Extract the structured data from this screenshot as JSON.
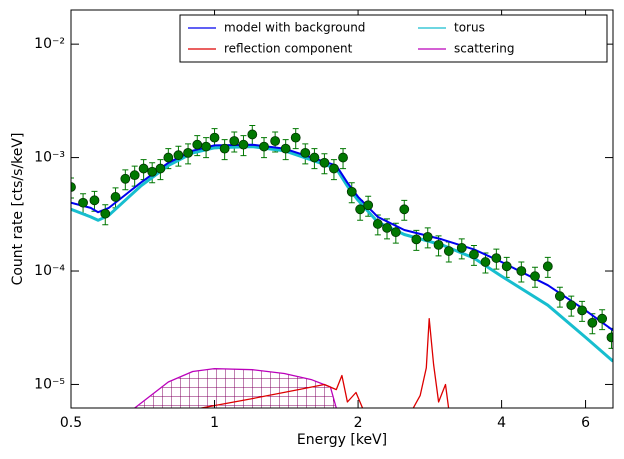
{
  "chart_data": {
    "type": "line",
    "xlabel": "Energy [keV]",
    "ylabel": "Count rate [cts/s/keV]",
    "xscale": "log",
    "yscale": "log",
    "xlim": [
      0.5,
      6.85
    ],
    "ylim": [
      6.2e-06,
      0.02
    ],
    "xticks": [
      0.5,
      1,
      2,
      4,
      6
    ],
    "yticks": [
      {
        "value": 1e-05,
        "label": "10⁻⁵"
      },
      {
        "value": 0.0001,
        "label": "10⁻⁴"
      },
      {
        "value": 0.001,
        "label": "10⁻³"
      },
      {
        "value": 0.01,
        "label": "10⁻²"
      }
    ],
    "legend": "upper right",
    "series": [
      {
        "name": "model with background",
        "color": "#0000ee",
        "width": 2,
        "x": [
          0.5,
          0.55,
          0.57,
          0.6,
          0.7,
          0.8,
          0.9,
          1.0,
          1.2,
          1.4,
          1.6,
          1.8,
          1.9,
          2.0,
          2.2,
          2.5,
          3,
          3.5,
          4,
          5,
          6,
          6.85
        ],
        "values": [
          0.0004,
          0.00036,
          0.00033,
          0.00036,
          0.0006,
          0.0009,
          0.00115,
          0.00128,
          0.0013,
          0.0012,
          0.001,
          0.00085,
          0.0006,
          0.00045,
          0.0003,
          0.00023,
          0.00019,
          0.000155,
          0.00012,
          7.5e-05,
          4.5e-05,
          3e-05
        ]
      },
      {
        "name": "torus",
        "color": "#17becf",
        "width": 3,
        "x": [
          0.5,
          0.55,
          0.57,
          0.6,
          0.7,
          0.8,
          0.9,
          1.0,
          1.2,
          1.4,
          1.6,
          1.8,
          1.9,
          2.0,
          2.2,
          2.5,
          3,
          3.5,
          4,
          5,
          6,
          6.85
        ],
        "values": [
          0.00035,
          0.0003,
          0.00028,
          0.00031,
          0.00056,
          0.00085,
          0.0011,
          0.00122,
          0.00125,
          0.00115,
          0.00095,
          0.0008,
          0.00056,
          0.00042,
          0.00027,
          0.00021,
          0.00017,
          0.00013,
          9e-05,
          5e-05,
          2.6e-05,
          1.6e-05
        ]
      },
      {
        "name": "reflection component",
        "color": "#dd0000",
        "width": 1.3,
        "x": [
          0.9,
          1.2,
          1.5,
          1.7,
          1.8,
          1.85,
          1.9,
          1.98,
          2.05,
          2.6,
          2.7,
          2.78,
          2.82,
          2.88,
          2.95,
          3.05,
          3.1
        ],
        "values": [
          6e-06,
          7.5e-06,
          9e-06,
          1e-05,
          9e-06,
          1.2e-05,
          7e-06,
          8.5e-06,
          6e-06,
          6e-06,
          8e-06,
          1.4e-05,
          3.8e-05,
          1.5e-05,
          7e-06,
          1e-05,
          6e-06
        ]
      },
      {
        "name": "scattering",
        "color": "#bb00bb",
        "width": 1.3,
        "hatch": true,
        "x": [
          0.68,
          0.8,
          0.9,
          1.0,
          1.2,
          1.4,
          1.6,
          1.75,
          1.8
        ],
        "values": [
          6.2e-06,
          1.05e-05,
          1.3e-05,
          1.38e-05,
          1.35e-05,
          1.25e-05,
          1.1e-05,
          9.5e-06,
          6.2e-06
        ]
      }
    ],
    "points": {
      "color": "#007700",
      "x": [
        0.5,
        0.53,
        0.56,
        0.59,
        0.62,
        0.65,
        0.68,
        0.71,
        0.74,
        0.77,
        0.8,
        0.84,
        0.88,
        0.92,
        0.96,
        1.0,
        1.05,
        1.1,
        1.15,
        1.2,
        1.27,
        1.34,
        1.41,
        1.48,
        1.55,
        1.62,
        1.7,
        1.78,
        1.86,
        1.94,
        2.02,
        2.1,
        2.2,
        2.3,
        2.4,
        2.5,
        2.65,
        2.8,
        2.95,
        3.1,
        3.3,
        3.5,
        3.7,
        3.9,
        4.1,
        4.4,
        4.7,
        5.0,
        5.3,
        5.6,
        5.9,
        6.2,
        6.5,
        6.8
      ],
      "values": [
        0.00055,
        0.0004,
        0.00042,
        0.00032,
        0.00045,
        0.00065,
        0.0007,
        0.0008,
        0.00075,
        0.0008,
        0.001,
        0.00105,
        0.0011,
        0.0013,
        0.00125,
        0.0015,
        0.0012,
        0.0014,
        0.0013,
        0.0016,
        0.00125,
        0.0014,
        0.0012,
        0.0015,
        0.0011,
        0.001,
        0.0009,
        0.0008,
        0.001,
        0.0005,
        0.00035,
        0.00038,
        0.00026,
        0.00024,
        0.00022,
        0.00035,
        0.00019,
        0.0002,
        0.00017,
        0.00015,
        0.00016,
        0.00014,
        0.00012,
        0.00013,
        0.00011,
        0.0001,
        9e-05,
        0.00011,
        6e-05,
        5e-05,
        4.5e-05,
        3.5e-05,
        3.8e-05,
        2.6e-05
      ],
      "errors": [
        0.00011,
        8e-05,
        8.4e-05,
        6.4e-05,
        9e-05,
        0.00013,
        0.00014,
        0.00016,
        0.00015,
        0.00016,
        0.0002,
        0.00021,
        0.00022,
        0.00026,
        0.00025,
        0.0003,
        0.00024,
        0.00028,
        0.00026,
        0.00032,
        0.00025,
        0.00028,
        0.00024,
        0.0003,
        0.00022,
        0.0002,
        0.00018,
        0.00016,
        0.0002,
        0.0001,
        7e-05,
        7.6e-05,
        5.2e-05,
        4.8e-05,
        4.4e-05,
        7e-05,
        3.8e-05,
        4e-05,
        3.4e-05,
        3e-05,
        3.2e-05,
        2.8e-05,
        2.4e-05,
        2.6e-05,
        2.2e-05,
        2e-05,
        1.8e-05,
        2.2e-05,
        1.2e-05,
        1e-05,
        9e-06,
        7e-06,
        7.6e-06,
        5.2e-06
      ]
    }
  }
}
